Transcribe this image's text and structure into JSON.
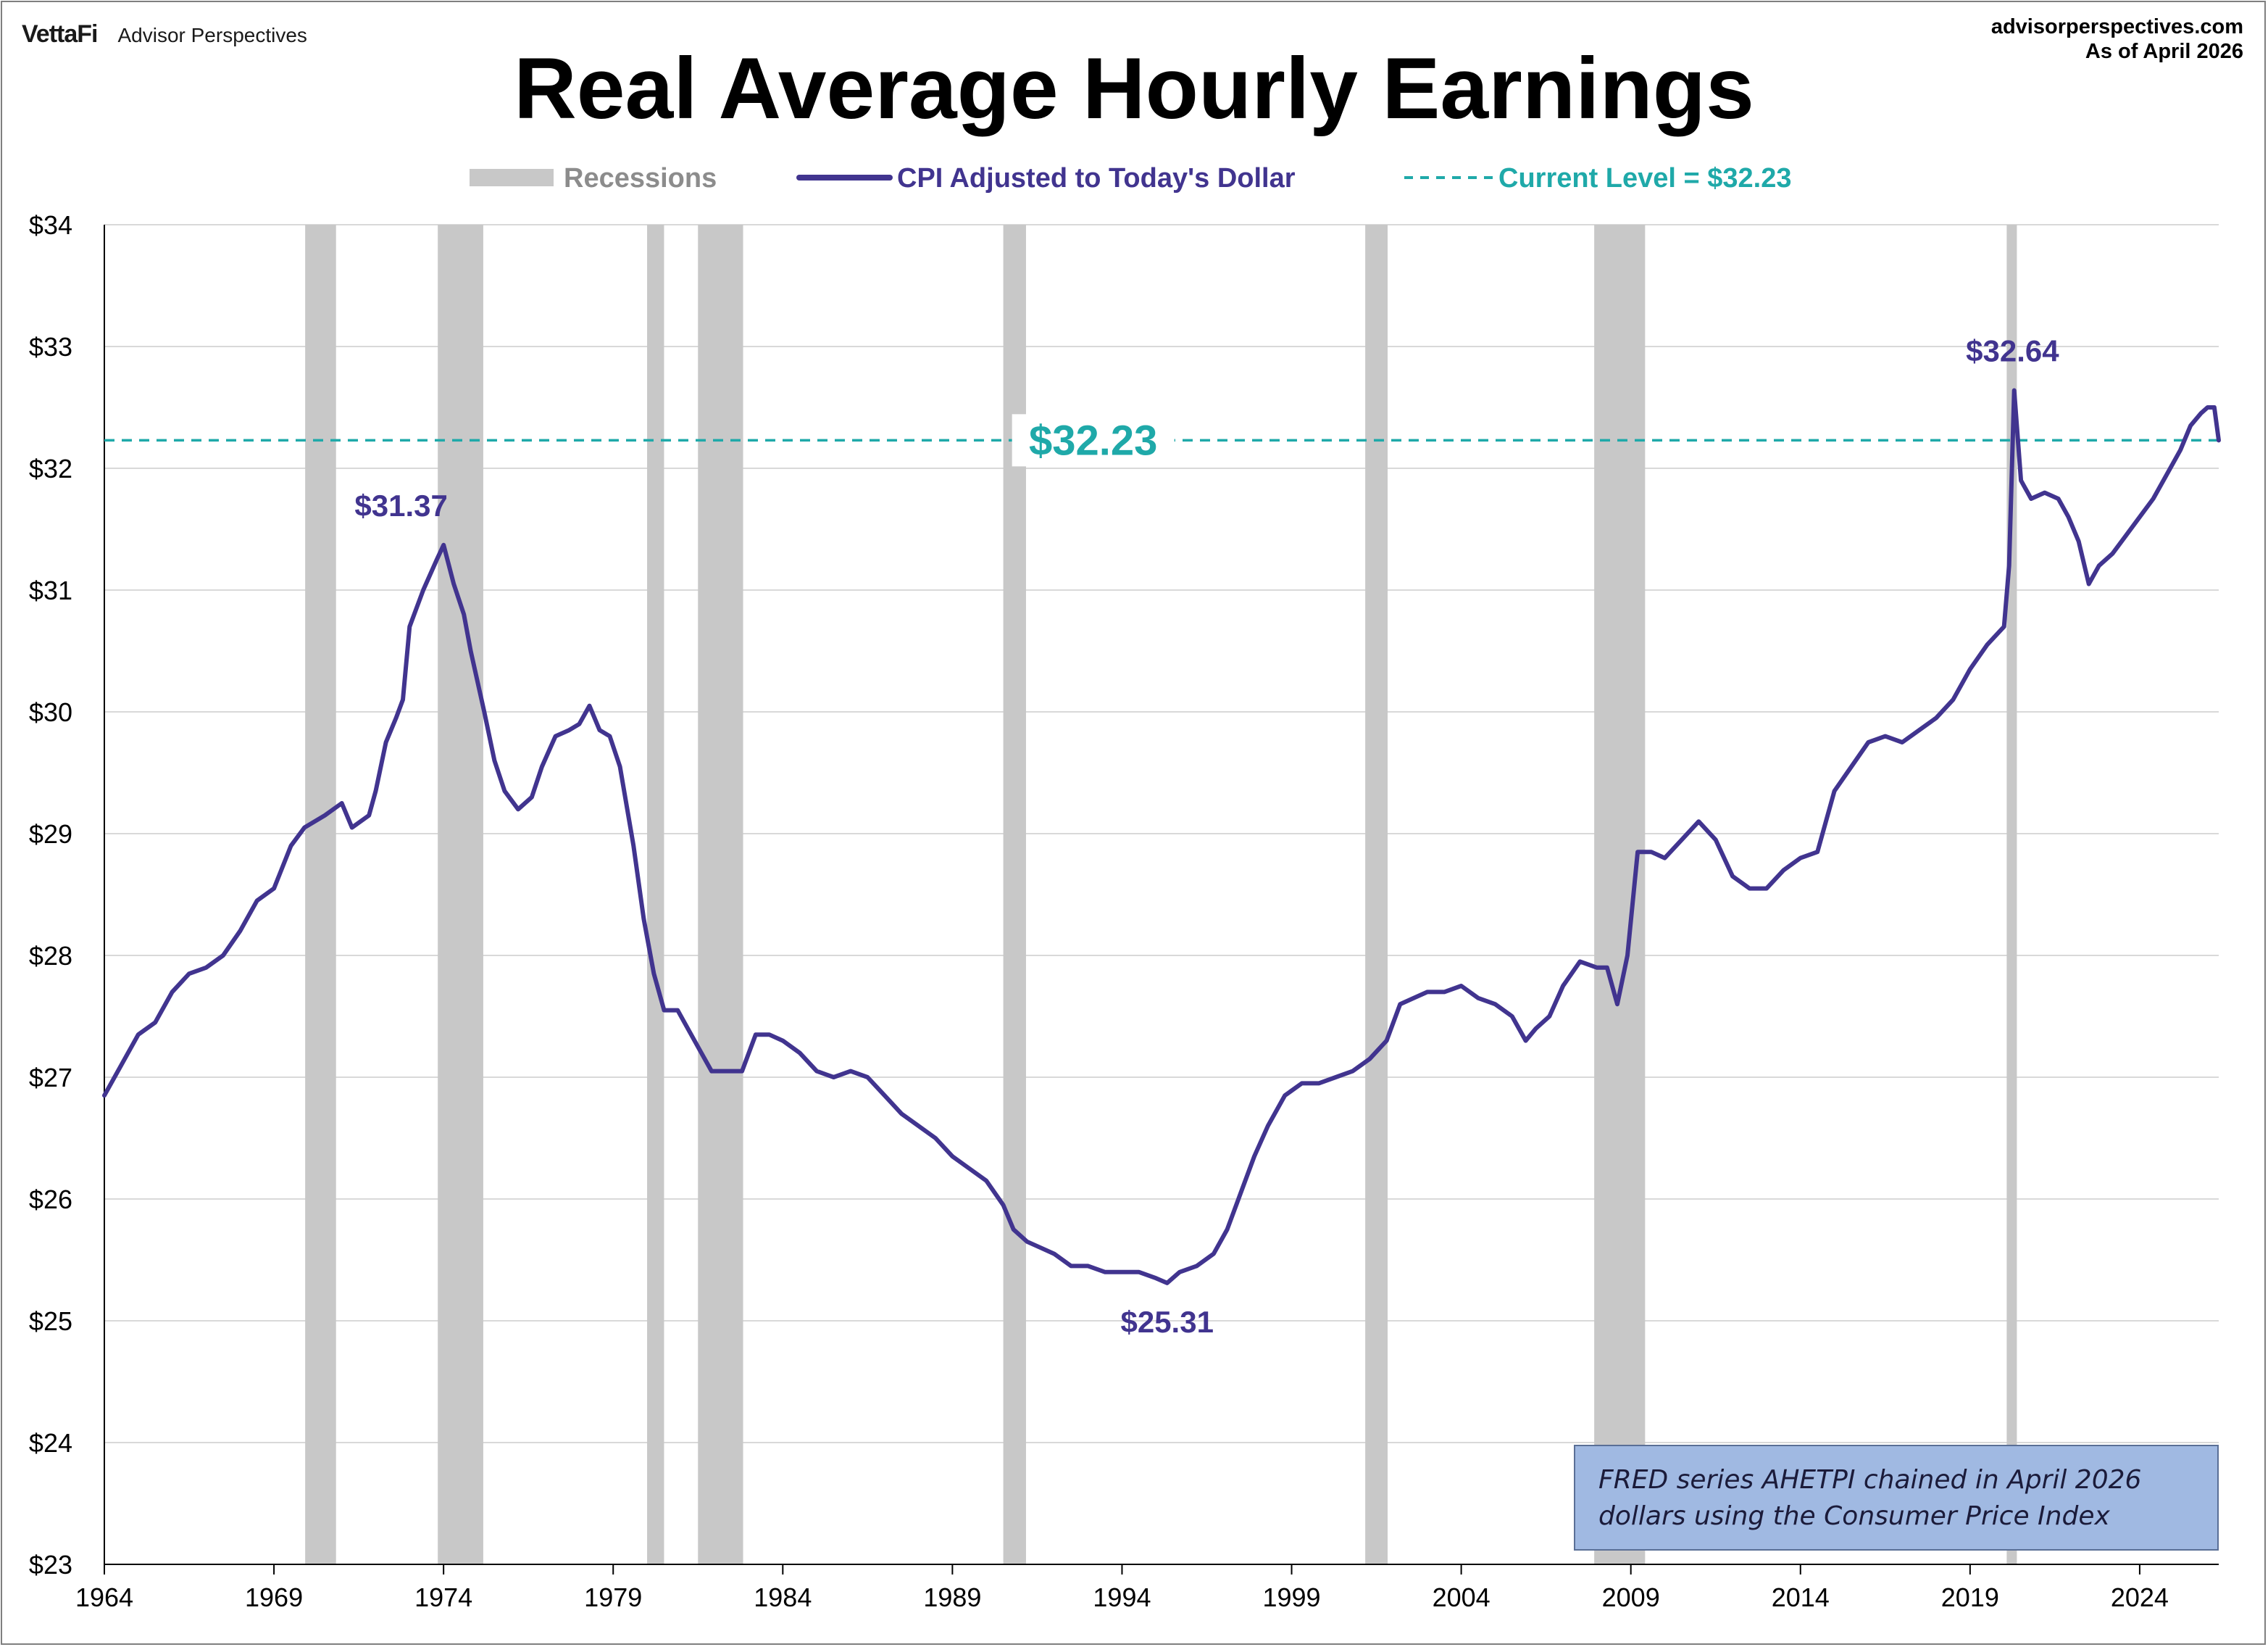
{
  "header": {
    "brand_logo": "VettaFi",
    "brand_name": "Advisor Perspectives",
    "site": "advisorperspectives.com",
    "as_of": "As of April 2026"
  },
  "colors": {
    "series": "#41348f",
    "current_level": "#1fa9a9",
    "recession": "#c8c8c8",
    "grid": "#d9d9d9",
    "note_bg": "#a0b9e2"
  },
  "note": {
    "line1": "FRED series AHETPI chained in April 2026",
    "line2": "dollars using the Consumer Price Index"
  },
  "chart_data": {
    "type": "line",
    "title": "Real Average Hourly Earnings",
    "xlabel": "",
    "ylabel": "",
    "xlim": [
      1964.0,
      2026.33
    ],
    "ylim": [
      23,
      34
    ],
    "x_ticks": [
      "1964",
      "1969",
      "1974",
      "1979",
      "1984",
      "1989",
      "1994",
      "1999",
      "2004",
      "2009",
      "2014",
      "2019",
      "2024"
    ],
    "y_ticks": [
      "$23",
      "$24",
      "$25",
      "$26",
      "$27",
      "$28",
      "$29",
      "$30",
      "$31",
      "$32",
      "$33",
      "$34"
    ],
    "grid": true,
    "legend_position": "top",
    "legend": [
      {
        "label": "Recessions",
        "kind": "recession"
      },
      {
        "label": "CPI Adjusted to Today's Dollar",
        "kind": "series"
      },
      {
        "label": "Current Level = $32.23",
        "kind": "current_level"
      }
    ],
    "current_level": {
      "value": 32.23,
      "label": "$32.23"
    },
    "recessions": [
      [
        1969.92,
        1970.83
      ],
      [
        1973.83,
        1975.17
      ],
      [
        1980.0,
        1980.5
      ],
      [
        1981.5,
        1982.83
      ],
      [
        1990.5,
        1991.17
      ],
      [
        2001.17,
        2001.83
      ],
      [
        2007.92,
        2009.42
      ],
      [
        2020.08,
        2020.33
      ]
    ],
    "annotations": [
      {
        "x": 1972.75,
        "y": 31.37,
        "label": "$31.37"
      },
      {
        "x": 1995.33,
        "y": 25.31,
        "label": "$25.31"
      },
      {
        "x": 2020.25,
        "y": 32.64,
        "label": "$32.64"
      }
    ],
    "series": [
      {
        "name": "CPI Adjusted to Today's Dollar",
        "points": [
          [
            1964.0,
            26.85
          ],
          [
            1964.5,
            27.1
          ],
          [
            1965.0,
            27.35
          ],
          [
            1965.5,
            27.45
          ],
          [
            1966.0,
            27.7
          ],
          [
            1966.5,
            27.85
          ],
          [
            1967.0,
            27.9
          ],
          [
            1967.5,
            28.0
          ],
          [
            1968.0,
            28.2
          ],
          [
            1968.5,
            28.45
          ],
          [
            1969.0,
            28.55
          ],
          [
            1969.5,
            28.9
          ],
          [
            1969.9,
            29.05
          ],
          [
            1970.5,
            29.15
          ],
          [
            1971.0,
            29.25
          ],
          [
            1971.3,
            29.05
          ],
          [
            1971.8,
            29.15
          ],
          [
            1972.0,
            29.35
          ],
          [
            1972.3,
            29.75
          ],
          [
            1972.6,
            29.95
          ],
          [
            1972.8,
            30.1
          ],
          [
            1973.0,
            30.7
          ],
          [
            1973.4,
            31.0
          ],
          [
            1973.8,
            31.25
          ],
          [
            1974.0,
            31.37
          ],
          [
            1974.3,
            31.05
          ],
          [
            1974.6,
            30.8
          ],
          [
            1974.8,
            30.5
          ],
          [
            1975.2,
            30.0
          ],
          [
            1975.5,
            29.6
          ],
          [
            1975.8,
            29.35
          ],
          [
            1976.2,
            29.2
          ],
          [
            1976.6,
            29.3
          ],
          [
            1976.9,
            29.55
          ],
          [
            1977.3,
            29.8
          ],
          [
            1977.7,
            29.85
          ],
          [
            1978.0,
            29.9
          ],
          [
            1978.3,
            30.05
          ],
          [
            1978.6,
            29.85
          ],
          [
            1978.9,
            29.8
          ],
          [
            1979.2,
            29.55
          ],
          [
            1979.6,
            28.9
          ],
          [
            1979.9,
            28.3
          ],
          [
            1980.2,
            27.85
          ],
          [
            1980.5,
            27.55
          ],
          [
            1980.9,
            27.55
          ],
          [
            1981.2,
            27.4
          ],
          [
            1981.6,
            27.2
          ],
          [
            1981.9,
            27.05
          ],
          [
            1982.4,
            27.05
          ],
          [
            1982.8,
            27.05
          ],
          [
            1983.2,
            27.35
          ],
          [
            1983.6,
            27.35
          ],
          [
            1984.0,
            27.3
          ],
          [
            1984.5,
            27.2
          ],
          [
            1985.0,
            27.05
          ],
          [
            1985.5,
            27.0
          ],
          [
            1986.0,
            27.05
          ],
          [
            1986.5,
            27.0
          ],
          [
            1987.0,
            26.85
          ],
          [
            1987.5,
            26.7
          ],
          [
            1988.0,
            26.6
          ],
          [
            1988.5,
            26.5
          ],
          [
            1989.0,
            26.35
          ],
          [
            1989.5,
            26.25
          ],
          [
            1990.0,
            26.15
          ],
          [
            1990.5,
            25.95
          ],
          [
            1990.8,
            25.75
          ],
          [
            1991.2,
            25.65
          ],
          [
            1991.6,
            25.6
          ],
          [
            1992.0,
            25.55
          ],
          [
            1992.5,
            25.45
          ],
          [
            1993.0,
            25.45
          ],
          [
            1993.5,
            25.4
          ],
          [
            1994.0,
            25.4
          ],
          [
            1994.5,
            25.4
          ],
          [
            1995.0,
            25.35
          ],
          [
            1995.33,
            25.31
          ],
          [
            1995.7,
            25.4
          ],
          [
            1996.2,
            25.45
          ],
          [
            1996.7,
            25.55
          ],
          [
            1997.1,
            25.75
          ],
          [
            1997.5,
            26.05
          ],
          [
            1997.9,
            26.35
          ],
          [
            1998.3,
            26.6
          ],
          [
            1998.8,
            26.85
          ],
          [
            1999.3,
            26.95
          ],
          [
            1999.8,
            26.95
          ],
          [
            2000.3,
            27.0
          ],
          [
            2000.8,
            27.05
          ],
          [
            2001.3,
            27.15
          ],
          [
            2001.8,
            27.3
          ],
          [
            2002.2,
            27.6
          ],
          [
            2002.6,
            27.65
          ],
          [
            2003.0,
            27.7
          ],
          [
            2003.5,
            27.7
          ],
          [
            2004.0,
            27.75
          ],
          [
            2004.5,
            27.65
          ],
          [
            2005.0,
            27.6
          ],
          [
            2005.5,
            27.5
          ],
          [
            2005.9,
            27.3
          ],
          [
            2006.2,
            27.4
          ],
          [
            2006.6,
            27.5
          ],
          [
            2007.0,
            27.75
          ],
          [
            2007.5,
            27.95
          ],
          [
            2008.0,
            27.9
          ],
          [
            2008.3,
            27.9
          ],
          [
            2008.6,
            27.6
          ],
          [
            2008.9,
            28.0
          ],
          [
            2009.2,
            28.85
          ],
          [
            2009.6,
            28.85
          ],
          [
            2010.0,
            28.8
          ],
          [
            2010.5,
            28.95
          ],
          [
            2011.0,
            29.1
          ],
          [
            2011.5,
            28.95
          ],
          [
            2012.0,
            28.65
          ],
          [
            2012.5,
            28.55
          ],
          [
            2013.0,
            28.55
          ],
          [
            2013.5,
            28.7
          ],
          [
            2014.0,
            28.8
          ],
          [
            2014.5,
            28.85
          ],
          [
            2015.0,
            29.35
          ],
          [
            2015.5,
            29.55
          ],
          [
            2016.0,
            29.75
          ],
          [
            2016.5,
            29.8
          ],
          [
            2017.0,
            29.75
          ],
          [
            2017.5,
            29.85
          ],
          [
            2018.0,
            29.95
          ],
          [
            2018.5,
            30.1
          ],
          [
            2019.0,
            30.35
          ],
          [
            2019.5,
            30.55
          ],
          [
            2020.0,
            30.7
          ],
          [
            2020.15,
            31.2
          ],
          [
            2020.3,
            32.64
          ],
          [
            2020.5,
            31.9
          ],
          [
            2020.8,
            31.75
          ],
          [
            2021.2,
            31.8
          ],
          [
            2021.6,
            31.75
          ],
          [
            2021.9,
            31.6
          ],
          [
            2022.2,
            31.4
          ],
          [
            2022.5,
            31.05
          ],
          [
            2022.8,
            31.2
          ],
          [
            2023.2,
            31.3
          ],
          [
            2023.6,
            31.45
          ],
          [
            2024.0,
            31.6
          ],
          [
            2024.4,
            31.75
          ],
          [
            2024.8,
            31.95
          ],
          [
            2025.2,
            32.15
          ],
          [
            2025.5,
            32.35
          ],
          [
            2025.8,
            32.45
          ],
          [
            2026.0,
            32.5
          ],
          [
            2026.2,
            32.5
          ],
          [
            2026.33,
            32.23
          ]
        ]
      }
    ]
  }
}
